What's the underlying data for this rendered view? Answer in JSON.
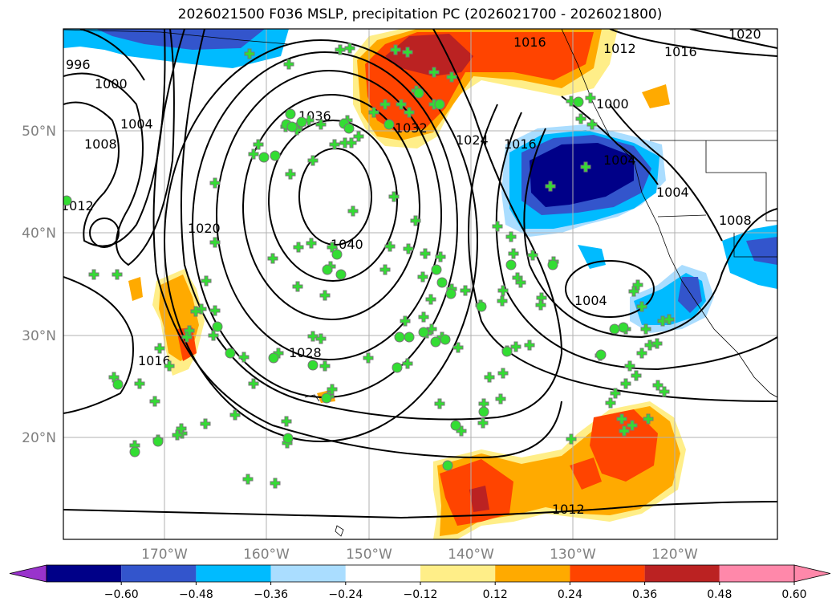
{
  "title": "2026021500 F036 MSLP, precipitation PC (2026021700 - 2026021800)",
  "lat_labels": [
    "50°N",
    "40°N",
    "30°N",
    "20°N"
  ],
  "lon_labels": [
    "170°W",
    "160°W",
    "150°W",
    "140°W",
    "130°W",
    "120°W"
  ],
  "colorbar": {
    "ticks": [
      "−0.60",
      "−0.48",
      "−0.36",
      "−0.24",
      "−0.12",
      "0.12",
      "0.24",
      "0.36",
      "0.48",
      "0.60"
    ],
    "colors": [
      "#9933cc",
      "#000088",
      "#3355cc",
      "#00bbff",
      "#aaddff",
      "#ffffff",
      "#ffee88",
      "#ffaa00",
      "#ff4400",
      "#bb2222",
      "#ff88aa"
    ]
  },
  "isobar_labels": [
    "996",
    "1000",
    "1004",
    "1008",
    "1012",
    "1020",
    "1016",
    "1028",
    "1040",
    "1036",
    "1032",
    "1024",
    "1016",
    "1000",
    "1004",
    "1008",
    "1004",
    "1016",
    "1012",
    "1016",
    "1020",
    "1012",
    "1004",
    "1008"
  ],
  "colors": {
    "isobar": "#000000",
    "station_cross": "#33dd33",
    "station_edge": "#777777",
    "grid": "#b0b0b0"
  }
}
